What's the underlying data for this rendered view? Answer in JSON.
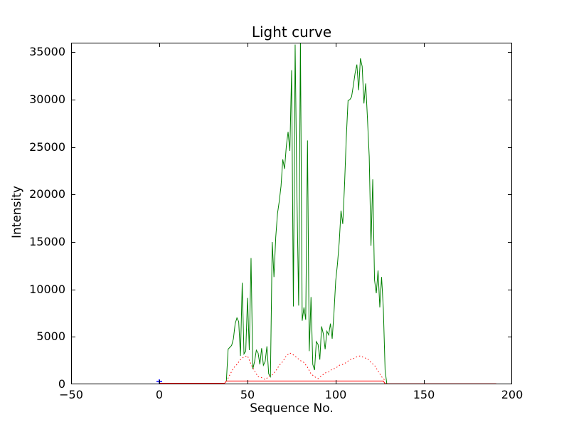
{
  "figure": {
    "title": "Light curve",
    "xlabel": "Sequence No.",
    "ylabel": "Intensity",
    "background_color": "#ffffff",
    "frame_color": "#000000"
  },
  "axes": {
    "xlim": [
      -50,
      200
    ],
    "ylim": [
      0,
      36000
    ],
    "x_tick_values": [
      -50,
      0,
      50,
      100,
      150,
      200
    ],
    "x_tick_labels": [
      "−50",
      "0",
      "50",
      "100",
      "150",
      "200"
    ],
    "y_tick_values": [
      0,
      5000,
      10000,
      15000,
      20000,
      25000,
      30000,
      35000
    ],
    "y_tick_labels": [
      "0",
      "5000",
      "10000",
      "15000",
      "20000",
      "25000",
      "30000",
      "35000"
    ],
    "tick_length": 6,
    "grid": false
  },
  "chart_data": {
    "type": "line",
    "title": "Light curve",
    "xlabel": "Sequence No.",
    "ylabel": "Intensity",
    "xlim": [
      -50,
      200
    ],
    "ylim": [
      0,
      36000
    ],
    "grid": false,
    "legend": null,
    "series": [
      {
        "name": "intensity-main-green",
        "color": "#008000",
        "style": "solid",
        "x": [
          38,
          39,
          40,
          41,
          42,
          43,
          44,
          45,
          46,
          47,
          48,
          49,
          50,
          51,
          52,
          53,
          54,
          55,
          56,
          57,
          58,
          59,
          60,
          61,
          62,
          63,
          64,
          65,
          66,
          67,
          68,
          69,
          70,
          71,
          72,
          73,
          74,
          75,
          76,
          77,
          78,
          79,
          80,
          81,
          82,
          83,
          84,
          85,
          86,
          87,
          88,
          89,
          90,
          91,
          92,
          93,
          94,
          95,
          96,
          97,
          98,
          99,
          100,
          101,
          102,
          103,
          104,
          105,
          106,
          107,
          108,
          109,
          110,
          111,
          112,
          113,
          114,
          115,
          116,
          117,
          118,
          119,
          120,
          121,
          122,
          123,
          124,
          125,
          126,
          127,
          128,
          129
        ],
        "y": [
          300,
          3700,
          3900,
          4100,
          4800,
          6400,
          7000,
          6600,
          3000,
          10700,
          3200,
          3500,
          9100,
          3600,
          13300,
          1600,
          2400,
          3600,
          3300,
          2100,
          3800,
          2000,
          2400,
          4000,
          1100,
          800,
          15000,
          11300,
          15500,
          18000,
          19300,
          20900,
          23700,
          22700,
          25100,
          26600,
          24600,
          33100,
          8200,
          35800,
          20000,
          8300,
          36400,
          6700,
          8100,
          6800,
          25700,
          3500,
          9200,
          2100,
          1500,
          4500,
          4200,
          2600,
          6100,
          5300,
          3700,
          5600,
          5200,
          6400,
          4800,
          7500,
          10900,
          12700,
          15000,
          18300,
          16900,
          21000,
          26000,
          29900,
          30000,
          30300,
          31500,
          32800,
          33700,
          31000,
          34350,
          33500,
          29600,
          31700,
          28000,
          24000,
          14600,
          21600,
          11000,
          9600,
          12000,
          8100,
          11300,
          8000,
          1500,
          0
        ]
      },
      {
        "name": "intensity-secondary-red-dotted",
        "color": "#ff0000",
        "style": "dotted",
        "x": [
          38,
          40,
          42,
          44,
          46,
          48,
          50,
          52,
          54,
          56,
          58,
          60,
          62,
          64,
          66,
          68,
          70,
          72,
          74,
          76,
          78,
          80,
          82,
          84,
          86,
          88,
          90,
          92,
          94,
          96,
          98,
          100,
          102,
          104,
          106,
          108,
          110,
          112,
          114,
          116,
          118,
          120,
          122,
          124,
          126,
          128
        ],
        "y": [
          300,
          1000,
          1700,
          2100,
          2600,
          2900,
          3000,
          2100,
          1400,
          800,
          700,
          500,
          800,
          1000,
          1400,
          2000,
          2400,
          3000,
          3300,
          3100,
          2800,
          2500,
          2300,
          1800,
          1100,
          800,
          600,
          900,
          1200,
          1300,
          1600,
          1700,
          2000,
          2100,
          2300,
          2600,
          2700,
          2900,
          3000,
          2800,
          2700,
          2300,
          2000,
          1400,
          800,
          400
        ]
      },
      {
        "name": "baseline-red-solid",
        "color": "#ff0000",
        "style": "solid",
        "x": [
          0,
          37,
          38,
          127,
          128,
          191
        ],
        "y": [
          100,
          100,
          350,
          350,
          60,
          60
        ]
      },
      {
        "name": "start-marker-blue",
        "color": "#0000ff",
        "style": "marker-plus",
        "x": [
          0
        ],
        "y": [
          300
        ]
      }
    ]
  }
}
